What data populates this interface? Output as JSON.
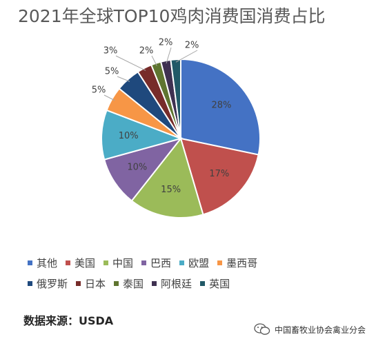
{
  "colors": {
    "series": [
      "#4472c4",
      "#c0504d",
      "#9bbb59",
      "#8064a2",
      "#4bacc6",
      "#f79646",
      "#1f497d",
      "#772c2a",
      "#5f7530",
      "#3f3151",
      "#215967"
    ]
  },
  "chart_data": {
    "type": "pie",
    "title": "2021年全球TOP10鸡肉消费国消费占比",
    "categories": [
      "其他",
      "美国",
      "中国",
      "巴西",
      "欧盟",
      "墨西哥",
      "俄罗斯",
      "日本",
      "泰国",
      "阿根廷",
      "英国"
    ],
    "values": [
      28,
      17,
      15,
      10,
      10,
      5,
      5,
      3,
      2,
      2,
      2
    ],
    "labels": [
      "28%",
      "17%",
      "15%",
      "10%",
      "10%",
      "5%",
      "5%",
      "3%",
      "2%",
      "2%",
      "2%"
    ],
    "legend": "bottom"
  },
  "legend_rows": [
    [
      "其他",
      "美国",
      "中国",
      "巴西",
      "欧盟",
      "墨西哥"
    ],
    [
      "俄罗斯",
      "日本",
      "泰国",
      "阿根廷",
      "英国"
    ]
  ],
  "source": "数据来源：USDA",
  "watermark": "中国畜牧业协会禽业分会",
  "icons": {
    "watermark_logo": "wechat-icon"
  }
}
